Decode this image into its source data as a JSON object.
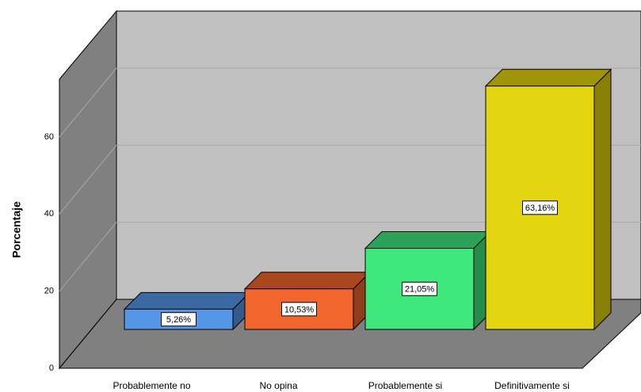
{
  "chart_data": {
    "type": "bar3d",
    "y_label": "Porcentaje",
    "categories": [
      "Probablemente no",
      "No opina",
      "Probablemente si",
      "Definitivamente si"
    ],
    "values": [
      5.26,
      10.53,
      21.05,
      63.16
    ],
    "value_labels": [
      "5,26%",
      "10,53%",
      "21,05%",
      "63,16%"
    ],
    "colors": [
      "#5596e6",
      "#f2652d",
      "#3fe87d",
      "#e3d50f"
    ],
    "ylim": [
      0,
      75
    ],
    "yticks": [
      0,
      20,
      40,
      60
    ],
    "grid": true
  }
}
